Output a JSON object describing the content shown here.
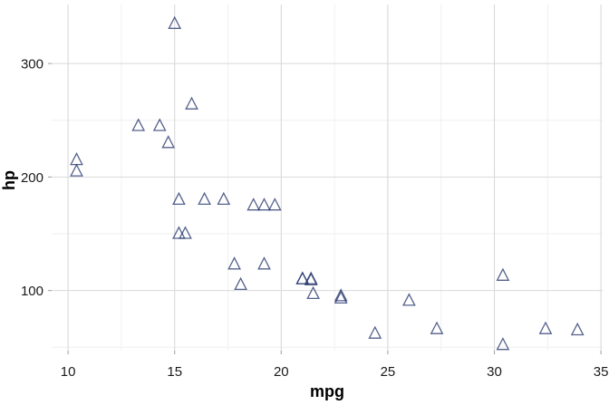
{
  "chart_data": {
    "type": "scatter",
    "title": "",
    "xlabel": "mpg",
    "ylabel": "hp",
    "xlim": [
      9.23,
      35.08
    ],
    "ylim": [
      47,
      352
    ],
    "x_ticks": [
      10,
      15,
      20,
      25,
      30,
      35
    ],
    "y_ticks": [
      100,
      200,
      300
    ],
    "x_minor_ticks": [
      12.5,
      17.5,
      22.5,
      27.5,
      32.5
    ],
    "y_minor_ticks": [
      50,
      150,
      250
    ],
    "grid": "on",
    "legend": "none",
    "marker": {
      "shape": "open-triangle",
      "color": "#24356b",
      "opacity": 0.78
    },
    "colors": {
      "background": "#ffffff",
      "grid_major": "#d9d9d9",
      "grid_minor": "#efefef",
      "tick_mark": "#a6a6a6",
      "axis_text": "#1a1a1a",
      "axis_title": "#000000"
    },
    "points": [
      [
        21.0,
        110
      ],
      [
        21.0,
        110
      ],
      [
        22.8,
        93
      ],
      [
        21.4,
        110
      ],
      [
        18.7,
        175
      ],
      [
        18.1,
        105
      ],
      [
        14.3,
        245
      ],
      [
        24.4,
        62
      ],
      [
        22.8,
        95
      ],
      [
        19.2,
        123
      ],
      [
        17.8,
        123
      ],
      [
        16.4,
        180
      ],
      [
        17.3,
        180
      ],
      [
        15.2,
        180
      ],
      [
        10.4,
        205
      ],
      [
        10.4,
        215
      ],
      [
        14.7,
        230
      ],
      [
        32.4,
        66
      ],
      [
        30.4,
        52
      ],
      [
        33.9,
        65
      ],
      [
        21.5,
        97
      ],
      [
        15.5,
        150
      ],
      [
        15.2,
        150
      ],
      [
        13.3,
        245
      ],
      [
        19.2,
        175
      ],
      [
        27.3,
        66
      ],
      [
        26.0,
        91
      ],
      [
        30.4,
        113
      ],
      [
        15.8,
        264
      ],
      [
        19.7,
        175
      ],
      [
        15.0,
        335
      ],
      [
        21.4,
        109
      ]
    ]
  }
}
